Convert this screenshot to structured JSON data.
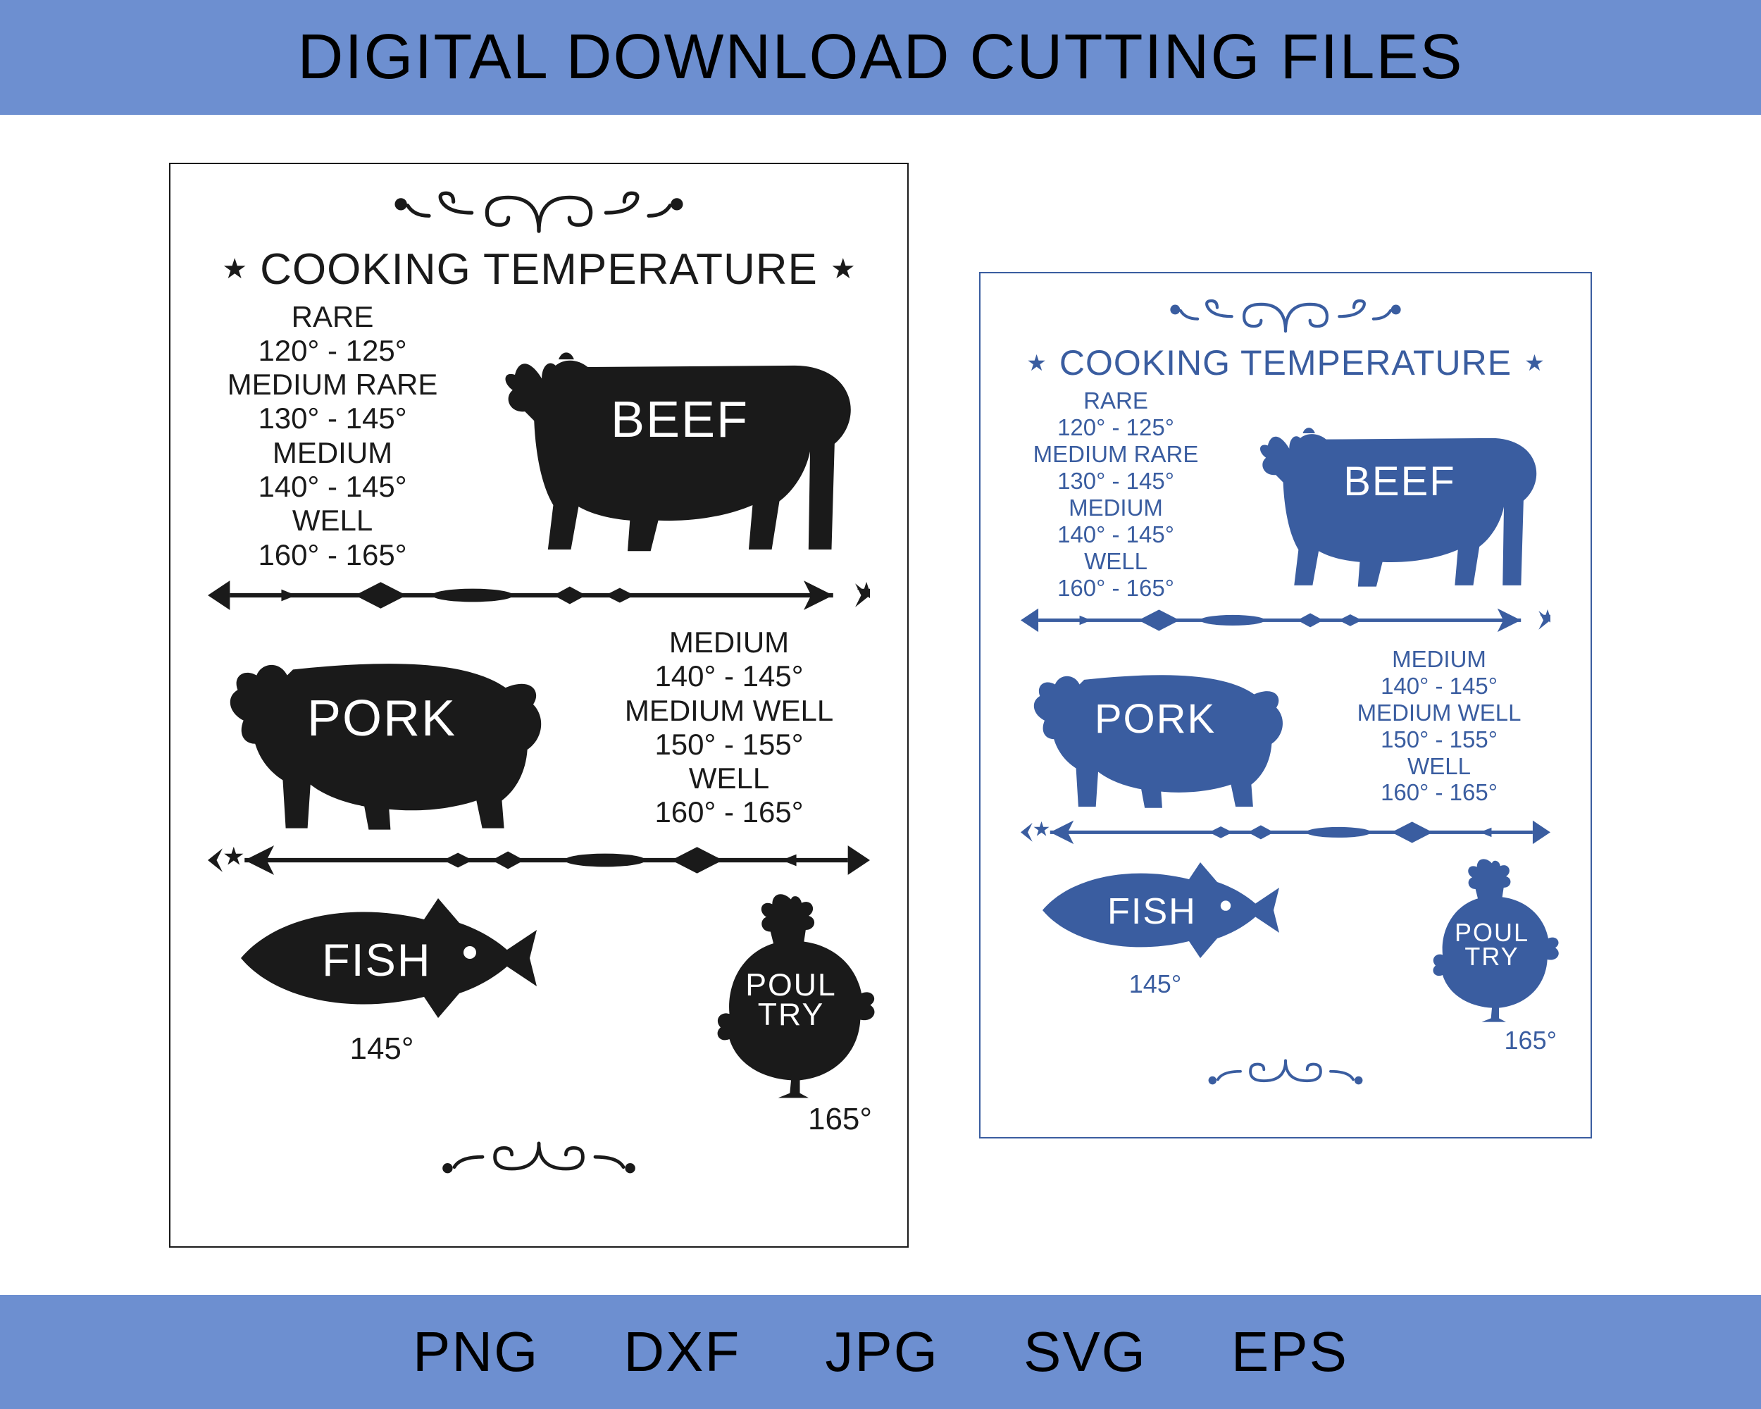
{
  "header": {
    "title": "DIGITAL DOWNLOAD CUTTING FILES"
  },
  "footer": {
    "formats": [
      "PNG",
      "DXF",
      "JPG",
      "SVG",
      "EPS"
    ]
  },
  "colors": {
    "banner_bg": "#6d8fd0",
    "black": "#1a1a1a",
    "blue": "#3a5da0",
    "white": "#ffffff",
    "border_large": "#1a1a1a",
    "border_small": "#3a5da0"
  },
  "chart": {
    "title": "COOKING TEMPERATURE",
    "star_glyph": "★",
    "beef": {
      "name": "BEEF",
      "temps": [
        {
          "label": "RARE",
          "range": "120° - 125°"
        },
        {
          "label": "MEDIUM RARE",
          "range": "130° - 145°"
        },
        {
          "label": "MEDIUM",
          "range": "140° - 145°"
        },
        {
          "label": "WELL",
          "range": "160° - 165°"
        }
      ]
    },
    "pork": {
      "name": "PORK",
      "temps": [
        {
          "label": "MEDIUM",
          "range": "140° - 145°"
        },
        {
          "label": "MEDIUM WELL",
          "range": "150° - 155°"
        },
        {
          "label": "WELL",
          "range": "160° - 165°"
        }
      ]
    },
    "fish": {
      "name": "FISH",
      "temp": "145°"
    },
    "poultry": {
      "name1": "POUL",
      "name2": "TRY",
      "temp": "165°"
    }
  },
  "layout": {
    "large": {
      "title_fs": 62,
      "temp_fs": 42,
      "animal_label_fs": 72,
      "bottom_temp_fs": 44
    },
    "small": {
      "title_fs": 50,
      "temp_fs": 33,
      "animal_label_fs": 58,
      "bottom_temp_fs": 36
    }
  }
}
